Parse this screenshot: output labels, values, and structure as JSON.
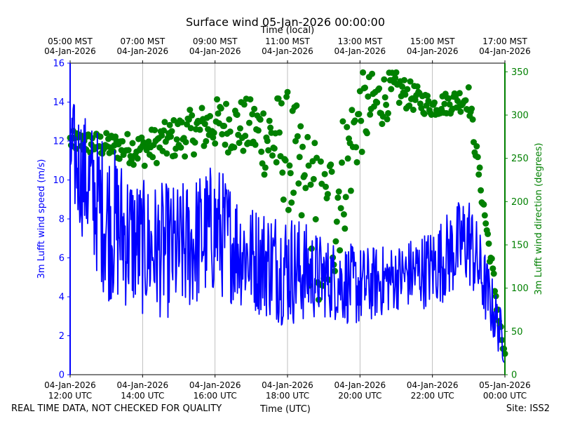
{
  "chart_data": {
    "type": "line+scatter",
    "title": "Surface wind 05-Jan-2026 00:00:00",
    "top_axis_label": "Time (local)",
    "top_ticks": [
      {
        "line1": "05:00 MST",
        "line2": "04-Jan-2026",
        "hours_from_12utc": 0
      },
      {
        "line1": "07:00 MST",
        "line2": "04-Jan-2026",
        "hours_from_12utc": 2
      },
      {
        "line1": "09:00 MST",
        "line2": "04-Jan-2026",
        "hours_from_12utc": 4
      },
      {
        "line1": "11:00 MST",
        "line2": "04-Jan-2026",
        "hours_from_12utc": 6
      },
      {
        "line1": "13:00 MST",
        "line2": "04-Jan-2026",
        "hours_from_12utc": 8
      },
      {
        "line1": "15:00 MST",
        "line2": "04-Jan-2026",
        "hours_from_12utc": 10
      },
      {
        "line1": "17:00 MST",
        "line2": "04-Jan-2026",
        "hours_from_12utc": 12
      }
    ],
    "xlabel": "Time (UTC)",
    "bottom_ticks": [
      {
        "line1": "04-Jan-2026",
        "line2": "12:00 UTC",
        "hours_from_12utc": 0
      },
      {
        "line1": "04-Jan-2026",
        "line2": "14:00 UTC",
        "hours_from_12utc": 2
      },
      {
        "line1": "04-Jan-2026",
        "line2": "16:00 UTC",
        "hours_from_12utc": 4
      },
      {
        "line1": "04-Jan-2026",
        "line2": "18:00 UTC",
        "hours_from_12utc": 6
      },
      {
        "line1": "04-Jan-2026",
        "line2": "20:00 UTC",
        "hours_from_12utc": 8
      },
      {
        "line1": "04-Jan-2026",
        "line2": "22:00 UTC",
        "hours_from_12utc": 10
      },
      {
        "line1": "05-Jan-2026",
        "line2": "00:00 UTC",
        "hours_from_12utc": 12
      }
    ],
    "xlim_hours": [
      0,
      12
    ],
    "grid": "vertical",
    "left_axis": {
      "label": "3m Lufft wind speed (m/s)",
      "ylim": [
        0,
        16
      ],
      "ticks": [
        "0",
        "2",
        "4",
        "6",
        "8",
        "10",
        "12",
        "14",
        "16"
      ],
      "color": "#0000ff"
    },
    "right_axis": {
      "label": "3m Lufft wind direction (degrees)",
      "ylim": [
        0,
        360
      ],
      "ticks": [
        "0",
        "50",
        "100",
        "150",
        "200",
        "250",
        "300",
        "350"
      ],
      "color": "#008000"
    },
    "speed_series": {
      "name": "3m Lufft wind speed",
      "style": "line",
      "color": "#0000ff",
      "points_per_hour": 60,
      "hourly_anchor_means": [
        11.5,
        8.0,
        6.5,
        6.3,
        7.5,
        6.0,
        5.5,
        5.0,
        4.5,
        5.0,
        5.5,
        7.0,
        1.5
      ],
      "hourly_anchor_spread": [
        2.0,
        3.0,
        2.5,
        2.5,
        2.5,
        2.0,
        2.2,
        1.5,
        1.5,
        1.2,
        1.5,
        1.8,
        0.8
      ],
      "ylim": [
        0,
        16
      ]
    },
    "direction_series": {
      "name": "3m Lufft wind direction",
      "style": "scatter",
      "color": "#008000",
      "points_per_hour": 36,
      "hourly_anchor_means": [
        270,
        265,
        260,
        275,
        290,
        285,
        260,
        150,
        300,
        330,
        310,
        320,
        15
      ],
      "hourly_anchor_spread": [
        12,
        15,
        20,
        25,
        30,
        35,
        70,
        110,
        50,
        20,
        12,
        15,
        10
      ]
    }
  },
  "footer": {
    "disclaimer": "REAL TIME DATA, NOT CHECKED FOR QUALITY",
    "site": "Site: ISS2"
  }
}
